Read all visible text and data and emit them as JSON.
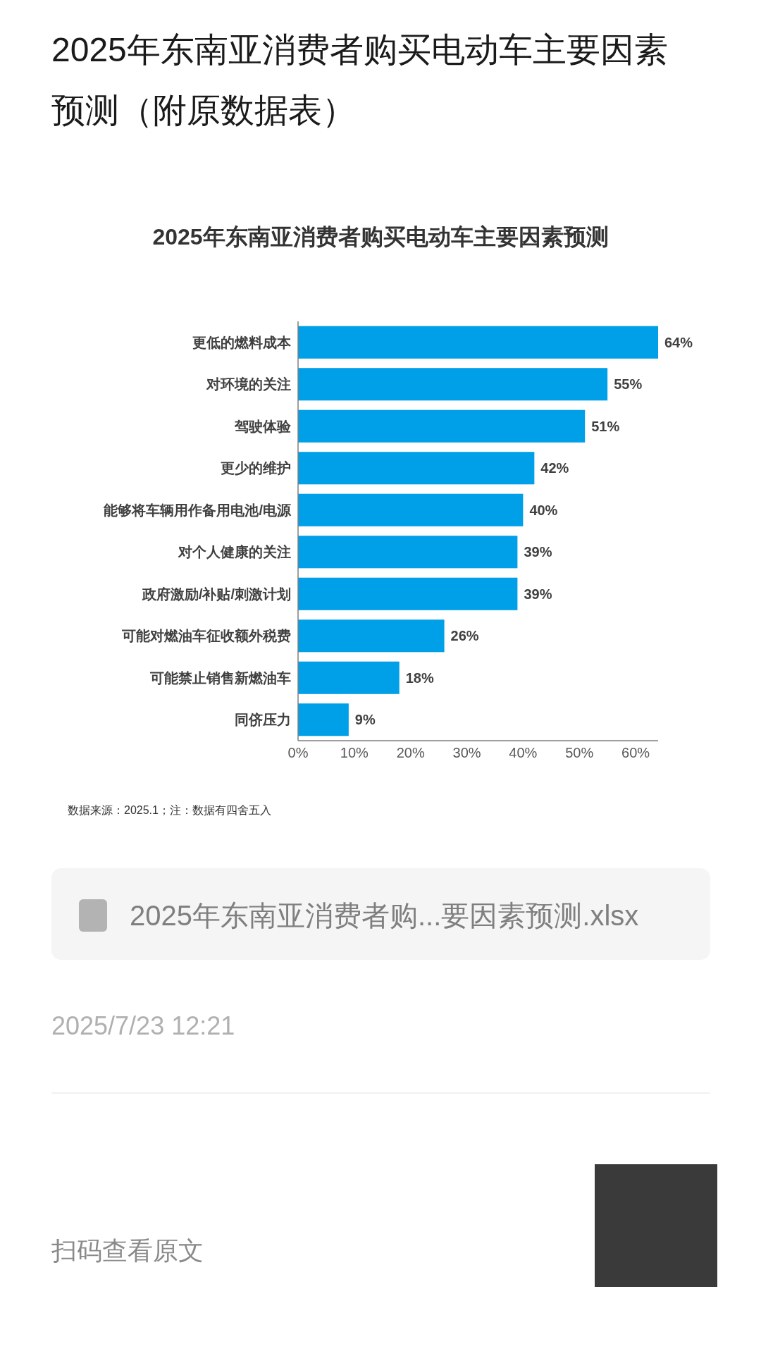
{
  "chart_data": {
    "type": "bar",
    "orientation": "horizontal",
    "title": "2025年东南亚消费者购买电动车主要因素预测（附原数据表）",
    "subtitle": "2025年东南亚消费者购买电动车主要因素预测",
    "categories": [
      "更低的燃料成本",
      "对环境的关注",
      "驾驶体验",
      "更少的维护",
      "能够将车辆用作备用电池/电源",
      "对个人健康的关注",
      "政府激励/补贴/刺激计划",
      "可能对燃油车征收额外税费",
      "可能禁止销售新燃油车",
      "同侪压力"
    ],
    "values": [
      64,
      55,
      51,
      42,
      40,
      39,
      39,
      26,
      18,
      9
    ],
    "value_labels": [
      "64%",
      "55%",
      "51%",
      "42%",
      "40%",
      "39%",
      "39%",
      "26%",
      "18%",
      "9%"
    ],
    "color": "#00a0e9",
    "xlim": [
      0,
      64
    ],
    "xticks": [
      {
        "value": 0,
        "label": "0%"
      },
      {
        "value": 10,
        "label": "10%"
      },
      {
        "value": 20,
        "label": "20%"
      },
      {
        "value": 30,
        "label": "30%"
      },
      {
        "value": 40,
        "label": "40%"
      },
      {
        "value": 50,
        "label": "50%"
      },
      {
        "value": 60,
        "label": "60%"
      }
    ],
    "annotations": [
      "数据来源：2025.1；注：数据有四舍五入",
      "2025年东南亚消费者购...要因素预测.xlsx",
      "2025/7/23 12:21",
      "扫码查看原文"
    ]
  }
}
